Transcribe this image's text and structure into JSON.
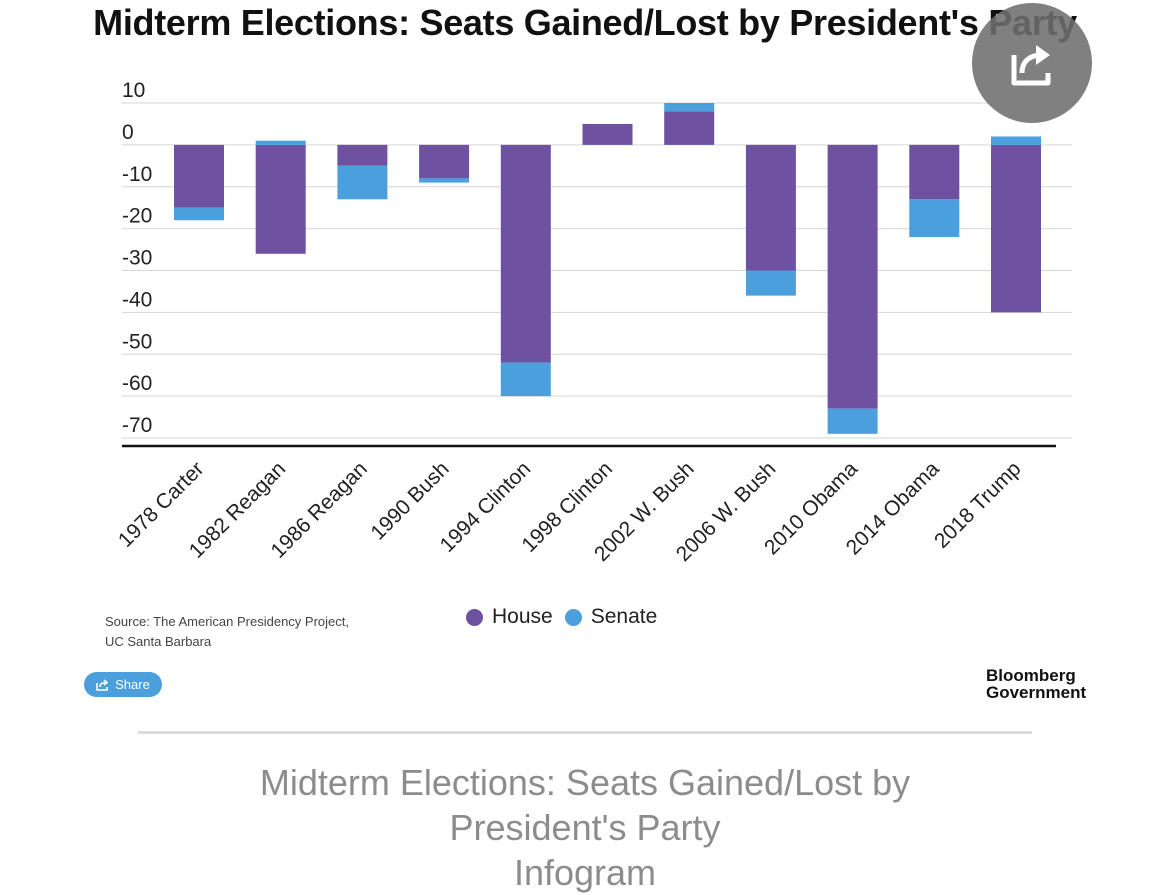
{
  "title": "Midterm Elections: Seats Gained/Lost by President's Party",
  "chart_data": {
    "type": "bar",
    "stacked": true,
    "title": "Midterm Elections: Seats Gained/Lost by President's Party",
    "xlabel": "",
    "ylabel": "",
    "ylim": [
      -70,
      10
    ],
    "yticks": [
      10,
      0,
      -10,
      -20,
      -30,
      -40,
      -50,
      -60,
      -70
    ],
    "grid": true,
    "categories": [
      "1978 Carter",
      "1982 Reagan",
      "1986 Reagan",
      "1990 Bush",
      "1994 Clinton",
      "1998 Clinton",
      "2002 W. Bush",
      "2006 W. Bush",
      "2010 Obama",
      "2014 Obama",
      "2018 Trump"
    ],
    "series": [
      {
        "name": "House",
        "color": "#6e51a0",
        "values": [
          -15,
          -26,
          -5,
          -8,
          -52,
          5,
          8,
          -30,
          -63,
          -13,
          -40
        ]
      },
      {
        "name": "Senate",
        "color": "#4a9fdc",
        "values": [
          -3,
          1,
          -8,
          -1,
          -8,
          0,
          2,
          -6,
          -6,
          -9,
          2
        ]
      }
    ],
    "legend": "bottom-center"
  },
  "legend": {
    "house": "House",
    "senate": "Senate"
  },
  "source": {
    "line1": "Source: The American Presidency Project,",
    "line2": "UC Santa Barbara"
  },
  "share_label": "Share",
  "brand": {
    "line1": "Bloomberg",
    "line2": "Government"
  },
  "caption": {
    "line1": "Midterm Elections: Seats Gained/Lost by",
    "line2": "President's Party",
    "line3": "Infogram"
  }
}
